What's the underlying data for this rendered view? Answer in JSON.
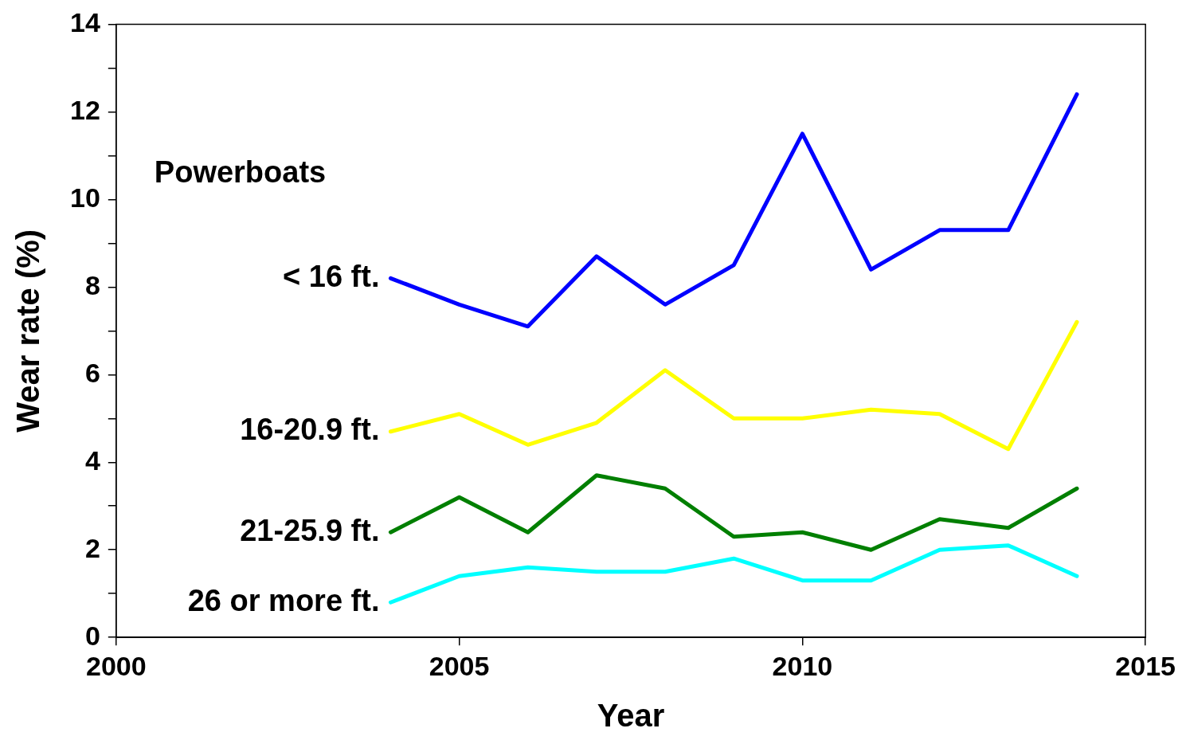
{
  "chart_data": {
    "type": "line",
    "xlabel": "Year",
    "ylabel": "Wear rate (%)",
    "annotations": [
      "Powerboats"
    ],
    "x": [
      2004,
      2005,
      2006,
      2007,
      2008,
      2009,
      2010,
      2011,
      2012,
      2013,
      2014
    ],
    "series": [
      {
        "name": "< 16 ft.",
        "color": "#0000ff",
        "values": [
          8.2,
          7.6,
          7.1,
          8.7,
          7.6,
          8.5,
          11.5,
          8.4,
          9.3,
          9.3,
          12.4
        ]
      },
      {
        "name": "16-20.9 ft.",
        "color": "#ffff00",
        "values": [
          4.7,
          5.1,
          4.4,
          4.9,
          6.1,
          5.0,
          5.0,
          5.2,
          5.1,
          4.3,
          7.2
        ]
      },
      {
        "name": "21-25.9 ft.",
        "color": "#007f00",
        "values": [
          2.4,
          3.2,
          2.4,
          3.7,
          3.4,
          2.3,
          2.4,
          2.0,
          2.7,
          2.5,
          3.4
        ]
      },
      {
        "name": "26 or more ft.",
        "color": "#00ffff",
        "values": [
          0.8,
          1.4,
          1.6,
          1.5,
          1.5,
          1.8,
          1.3,
          1.3,
          2.0,
          2.1,
          1.4
        ]
      }
    ],
    "xlim": [
      2000,
      2015
    ],
    "xticks": [
      2000,
      2005,
      2010,
      2015
    ],
    "ylim": [
      0,
      14
    ],
    "yticks": [
      0,
      {
        "value": 1,
        "label": null
      },
      2,
      {
        "value": 3,
        "label": null
      },
      4,
      {
        "value": 5,
        "label": null
      },
      6,
      {
        "value": 7,
        "label": null
      },
      8,
      {
        "value": 9,
        "label": null
      },
      10,
      {
        "value": 11,
        "label": null
      },
      12,
      {
        "value": 13,
        "label": null
      },
      14
    ],
    "grid": false,
    "legend": false,
    "marker": "none",
    "line_style": "solid"
  }
}
